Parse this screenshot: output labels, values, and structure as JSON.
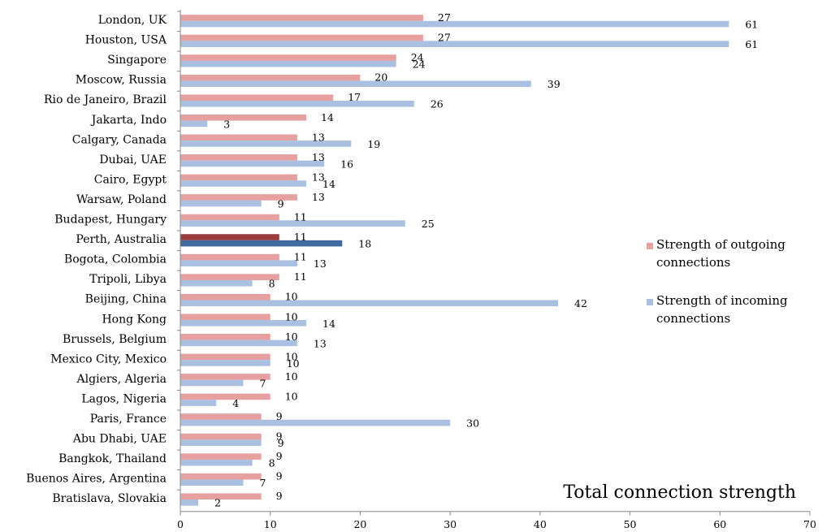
{
  "chart_data": {
    "type": "bar",
    "orientation": "horizontal",
    "xlabel": "Total connection strength",
    "xlim": [
      0,
      70
    ],
    "xticks": [
      0,
      10,
      20,
      30,
      40,
      50,
      60,
      70
    ],
    "grid": false,
    "legend_position": "right",
    "highlight_category": "Perth, Australia",
    "categories": [
      "London, UK",
      "Houston, USA",
      "Singapore",
      "Moscow, Russia",
      "Rio de Janeiro, Brazil",
      "Jakarta, Indo",
      "Calgary, Canada",
      "Dubai, UAE",
      "Cairo, Egypt",
      "Warsaw, Poland",
      "Budapest, Hungary",
      "Perth, Australia",
      "Bogota, Colombia",
      "Tripoli, Libya",
      "Beijing, China",
      "Hong Kong",
      "Brussels, Belgium",
      "Mexico City, Mexico",
      "Algiers, Algeria",
      "Lagos, Nigeria",
      "Paris, France",
      "Abu Dhabi, UAE",
      "Bangkok, Thailand",
      "Buenos Aires, Argentina",
      "Bratislava, Slovakia"
    ],
    "series": [
      {
        "name": "Strength of outgoing connections",
        "color": "#e6a0a0",
        "highlight_color": "#9b3b3b",
        "values": [
          27,
          27,
          24,
          20,
          17,
          14,
          13,
          13,
          13,
          13,
          11,
          11,
          11,
          11,
          10,
          10,
          10,
          10,
          10,
          10,
          9,
          9,
          9,
          9,
          9
        ]
      },
      {
        "name": "Strength of incoming connections",
        "color": "#a9c0e0",
        "highlight_color": "#3e6a9e",
        "values": [
          61,
          61,
          24,
          39,
          26,
          3,
          19,
          16,
          14,
          9,
          25,
          18,
          13,
          8,
          42,
          14,
          13,
          10,
          7,
          4,
          30,
          9,
          8,
          7,
          2
        ]
      }
    ],
    "legend": [
      "Strength of outgoing\nconnections",
      "Strength of incoming\nconnections"
    ]
  }
}
